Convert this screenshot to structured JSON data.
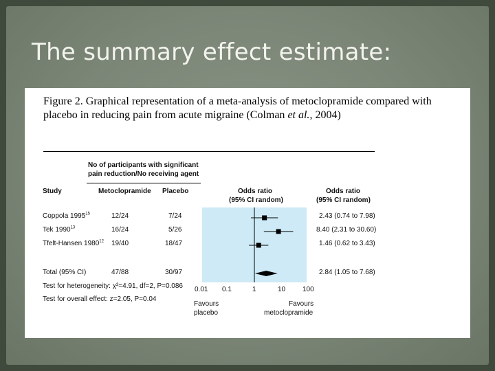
{
  "slide": {
    "title": "The summary effect estimate:"
  },
  "figure": {
    "caption_main": "Figure 2.  Graphical representation of a meta-analysis of metoclopramide compared with placebo in reducing pain from acute migraine (Colman ",
    "caption_italic": "et al.",
    "caption_end": ", 2004)"
  },
  "table": {
    "header_group": [
      "No of participants with significant",
      "pain reduction/No receiving agent"
    ],
    "col_study": "Study",
    "col_treatment": "Metoclopramide",
    "col_placebo": "Placebo",
    "col_plot": [
      "Odds ratio",
      "(95% CI random)"
    ],
    "col_or": [
      "Odds ratio",
      "(95% CI random)"
    ],
    "rows": [
      {
        "study": "Coppola 1995",
        "ref": "15",
        "treatment": "12/24",
        "placebo": "7/24",
        "or_text": "2.43 (0.74 to 7.98)"
      },
      {
        "study": "Tek 1990",
        "ref": "13",
        "treatment": "16/24",
        "placebo": "5/26",
        "or_text": "8.40 (2.31 to 30.60)"
      },
      {
        "study": "Tfelt-Hansen 1980",
        "ref": "12",
        "treatment": "19/40",
        "placebo": "18/47",
        "or_text": "1.46 (0.62 to 3.43)"
      }
    ],
    "total": {
      "study": "Total (95% CI)",
      "treatment": "47/88",
      "placebo": "30/97",
      "or_text": "2.84 (1.05 to 7.68)"
    },
    "heterogeneity": "Test for heterogeneity: χ²=4.91, df=2, P=0.086",
    "overall_effect": "Test for overall effect: z=2.05, P=0.04"
  },
  "chart_data": {
    "type": "forest",
    "x_scale": "log",
    "xlim": [
      0.01,
      100
    ],
    "x_ticks": [
      0.01,
      0.1,
      1,
      10,
      100
    ],
    "x_tick_labels": [
      "0.01",
      "0.1",
      "1",
      "10",
      "100"
    ],
    "left_label": [
      "Favours",
      "placebo"
    ],
    "right_label": [
      "Favours",
      "metoclopramide"
    ],
    "plot_background": "#cdeaf6",
    "studies": [
      {
        "name": "Coppola 1995",
        "or": 2.43,
        "lo": 0.74,
        "hi": 7.98
      },
      {
        "name": "Tek 1990",
        "or": 8.4,
        "lo": 2.31,
        "hi": 30.6
      },
      {
        "name": "Tfelt-Hansen 1980",
        "or": 1.46,
        "lo": 0.62,
        "hi": 3.43
      }
    ],
    "summary": {
      "name": "Total (95% CI)",
      "or": 2.84,
      "lo": 1.05,
      "hi": 7.68
    }
  }
}
